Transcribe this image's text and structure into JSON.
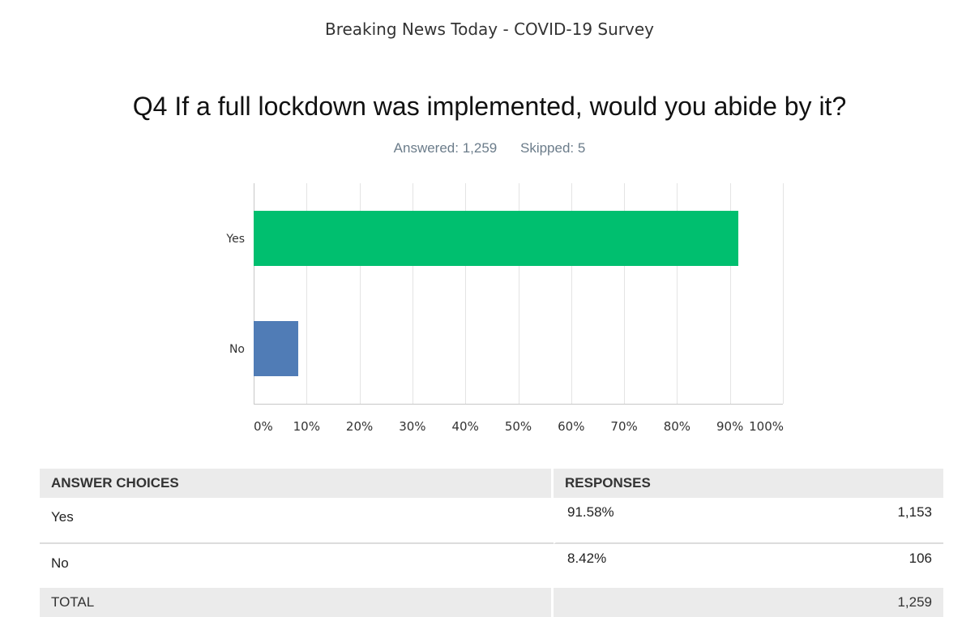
{
  "header": {
    "survey_title": "Breaking News Today - COVID-19 Survey",
    "question": "Q4 If a full lockdown was implemented, would you abide by it?",
    "answered": "Answered: 1,259",
    "skipped": "Skipped: 5"
  },
  "chart_data": {
    "type": "bar",
    "orientation": "horizontal",
    "categories": [
      "Yes",
      "No"
    ],
    "values": [
      91.58,
      8.42
    ],
    "colors": [
      "#00bf6f",
      "#507cb6"
    ],
    "xlim": [
      0,
      100
    ],
    "xticks": [
      "0%",
      "10%",
      "20%",
      "30%",
      "40%",
      "50%",
      "60%",
      "70%",
      "80%",
      "90%",
      "100%"
    ],
    "grid": true
  },
  "table": {
    "headers": {
      "choices": "ANSWER CHOICES",
      "responses": "RESPONSES"
    },
    "rows": [
      {
        "choice": "Yes",
        "percent": "91.58%",
        "count": "1,153"
      },
      {
        "choice": "No",
        "percent": "8.42%",
        "count": "106"
      }
    ],
    "total": {
      "label": "TOTAL",
      "count": "1,259"
    }
  }
}
